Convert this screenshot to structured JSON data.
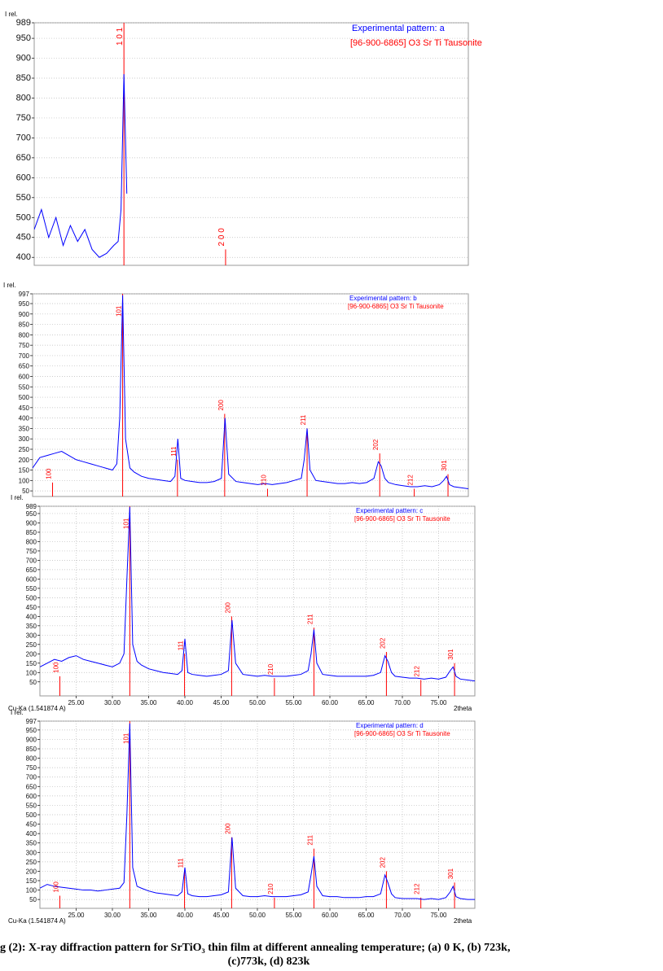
{
  "chart_data": [
    {
      "type": "line",
      "y_label": "I rel.",
      "grid": true,
      "legend": "upper right",
      "xlim": [
        20,
        80
      ],
      "ylim": [
        380,
        989
      ],
      "yticks": [
        400,
        450,
        500,
        550,
        600,
        650,
        700,
        750,
        800,
        850,
        900,
        950,
        989
      ],
      "x": [
        20,
        21,
        22,
        23,
        24,
        25,
        26,
        27,
        28,
        29,
        30,
        31,
        31.6,
        32,
        32.4,
        32.8
      ],
      "series": [
        {
          "name": "Experimental pattern: a",
          "color": "#0000ff",
          "values": [
            470,
            520,
            450,
            500,
            430,
            480,
            440,
            470,
            420,
            400,
            410,
            430,
            440,
            520,
            860,
            560
          ]
        }
      ],
      "reference": {
        "name": "[96-900-6865] O3 Sr Ti Tausonite",
        "color": "#ff0000",
        "x": [
          32.4,
          46.45
        ],
        "values": [
          989,
          420
        ],
        "labels": [
          "1 0 1",
          "2 0 0"
        ]
      }
    },
    {
      "type": "line",
      "y_label": "I rel.",
      "grid": true,
      "legend": "upper right",
      "xlim": [
        20,
        80
      ],
      "ylim": [
        23,
        997
      ],
      "yticks": [
        50,
        100,
        150,
        200,
        250,
        300,
        350,
        400,
        450,
        500,
        550,
        600,
        650,
        700,
        750,
        800,
        850,
        900,
        950,
        997
      ],
      "x": [
        20,
        21,
        22,
        23,
        24,
        25,
        26,
        27,
        28,
        29,
        30,
        31,
        31.6,
        32,
        32.4,
        32.8,
        33.4,
        34,
        35,
        36,
        37,
        38,
        39,
        39.6,
        40,
        40.4,
        41,
        42,
        43,
        44,
        45,
        46,
        46.5,
        47,
        48,
        49,
        50,
        51,
        52,
        53,
        54,
        55,
        56,
        57,
        57.4,
        57.8,
        58.2,
        59,
        60,
        61,
        62,
        63,
        64,
        65,
        66,
        67,
        67.6,
        68,
        68.5,
        69,
        70,
        71,
        72,
        73,
        74,
        75,
        76,
        76.6,
        77,
        77.4,
        78,
        79,
        80
      ],
      "series": [
        {
          "name": "Experimental pattern: b",
          "color": "#0000ff",
          "values": [
            160,
            210,
            220,
            230,
            240,
            220,
            200,
            190,
            180,
            170,
            160,
            150,
            180,
            400,
            990,
            300,
            160,
            140,
            120,
            110,
            105,
            100,
            95,
            120,
            300,
            110,
            100,
            95,
            90,
            90,
            95,
            110,
            400,
            130,
            95,
            90,
            85,
            80,
            85,
            80,
            85,
            90,
            100,
            110,
            200,
            350,
            150,
            100,
            95,
            90,
            85,
            85,
            90,
            85,
            90,
            110,
            190,
            170,
            110,
            90,
            80,
            75,
            70,
            70,
            75,
            70,
            80,
            100,
            120,
            80,
            70,
            65,
            60
          ]
        }
      ],
      "reference": {
        "name": "[96-900-6865] O3 Sr Ti Tausonite",
        "color": "#ff0000",
        "x": [
          22.75,
          32.4,
          39.95,
          46.45,
          52.35,
          57.8,
          67.8,
          72.55,
          77.2
        ],
        "values": [
          90,
          997,
          200,
          420,
          60,
          350,
          230,
          60,
          130
        ],
        "labels": [
          "100",
          "101",
          "111",
          "200",
          "210",
          "211",
          "202",
          "212",
          "301"
        ]
      }
    },
    {
      "type": "line",
      "y_label": "I rel.",
      "grid": true,
      "legend": "upper right",
      "x_label": "2theta",
      "radiation": "Cu-Ka (1.541874 A)",
      "xlim": [
        20,
        80
      ],
      "ylim": [
        -25,
        989
      ],
      "xticks": [
        {
          "value": 25,
          "label": "25.00"
        },
        {
          "value": 30,
          "label": "30.00"
        },
        {
          "value": 35,
          "label": "35.00"
        },
        {
          "value": 40,
          "label": "40.00"
        },
        {
          "value": 45,
          "label": "45.00"
        },
        {
          "value": 50,
          "label": "50.00"
        },
        {
          "value": 55,
          "label": "55.00"
        },
        {
          "value": 60,
          "label": "60.00"
        },
        {
          "value": 65,
          "label": "65.00"
        },
        {
          "value": 70,
          "label": "70.00"
        },
        {
          "value": 75,
          "label": "75.00"
        }
      ],
      "yticks": [
        50,
        100,
        150,
        200,
        250,
        300,
        350,
        400,
        450,
        500,
        550,
        600,
        650,
        700,
        750,
        800,
        850,
        900,
        950,
        989
      ],
      "x": [
        20,
        21,
        22,
        23,
        24,
        25,
        26,
        27,
        28,
        29,
        30,
        31,
        31.6,
        32,
        32.4,
        32.8,
        33.4,
        34,
        35,
        36,
        37,
        38,
        39,
        39.6,
        40,
        40.4,
        41,
        42,
        43,
        44,
        45,
        46,
        46.5,
        47,
        48,
        49,
        50,
        51,
        52,
        53,
        54,
        55,
        56,
        57,
        57.4,
        57.8,
        58.2,
        59,
        60,
        61,
        62,
        63,
        64,
        65,
        66,
        67,
        67.6,
        68,
        68.5,
        69,
        70,
        71,
        72,
        73,
        74,
        75,
        76,
        76.6,
        77,
        77.4,
        78,
        79,
        80
      ],
      "series": [
        {
          "name": "Experimental pattern: c",
          "color": "#0000ff",
          "values": [
            130,
            150,
            170,
            160,
            180,
            190,
            170,
            160,
            150,
            140,
            130,
            150,
            200,
            600,
            985,
            250,
            160,
            140,
            120,
            110,
            100,
            95,
            90,
            110,
            280,
            100,
            90,
            85,
            80,
            85,
            90,
            110,
            380,
            150,
            90,
            85,
            80,
            85,
            80,
            80,
            80,
            85,
            90,
            110,
            200,
            330,
            150,
            90,
            85,
            80,
            80,
            80,
            80,
            80,
            85,
            100,
            190,
            160,
            100,
            80,
            75,
            70,
            70,
            65,
            70,
            65,
            75,
            110,
            130,
            80,
            65,
            60,
            55
          ]
        }
      ],
      "reference": {
        "name": "[96-900-6865] O3 Sr Ti Tausonite",
        "color": "#ff0000",
        "x": [
          22.75,
          32.4,
          39.95,
          46.45,
          52.35,
          57.8,
          67.8,
          72.55,
          77.2
        ],
        "values": [
          80,
          989,
          200,
          400,
          70,
          340,
          210,
          60,
          150
        ],
        "labels": [
          "100",
          "101",
          "111",
          "200",
          "210",
          "211",
          "202",
          "212",
          "301"
        ]
      }
    },
    {
      "type": "line",
      "y_label": "I rel.",
      "grid": true,
      "legend": "upper right",
      "x_label": "2theta",
      "radiation": "Cu-Ka (1.541874 A)",
      "xlim": [
        20,
        80
      ],
      "ylim": [
        3,
        997
      ],
      "xticks": [
        {
          "value": 25,
          "label": "25.00"
        },
        {
          "value": 30,
          "label": "30.00"
        },
        {
          "value": 35,
          "label": "35.00"
        },
        {
          "value": 40,
          "label": "40.00"
        },
        {
          "value": 45,
          "label": "45.00"
        },
        {
          "value": 50,
          "label": "50.00"
        },
        {
          "value": 55,
          "label": "55.00"
        },
        {
          "value": 60,
          "label": "60.00"
        },
        {
          "value": 65,
          "label": "65.00"
        },
        {
          "value": 70,
          "label": "70.00"
        },
        {
          "value": 75,
          "label": "75.00"
        }
      ],
      "yticks": [
        50,
        100,
        150,
        200,
        250,
        300,
        350,
        400,
        450,
        500,
        550,
        600,
        650,
        700,
        750,
        800,
        850,
        900,
        950,
        997
      ],
      "x": [
        20,
        21,
        22,
        23,
        24,
        25,
        26,
        27,
        28,
        29,
        30,
        31,
        31.6,
        32,
        32.4,
        32.8,
        33.4,
        34,
        35,
        36,
        37,
        38,
        39,
        39.6,
        40,
        40.4,
        41,
        42,
        43,
        44,
        45,
        46,
        46.5,
        47,
        48,
        49,
        50,
        51,
        52,
        53,
        54,
        55,
        56,
        57,
        57.4,
        57.8,
        58.2,
        59,
        60,
        61,
        62,
        63,
        64,
        65,
        66,
        67,
        67.6,
        68,
        68.5,
        69,
        70,
        71,
        72,
        73,
        74,
        75,
        76,
        76.6,
        77,
        77.4,
        78,
        79,
        80
      ],
      "series": [
        {
          "name": "Experimental pattern: d",
          "color": "#0000ff",
          "values": [
            110,
            130,
            120,
            115,
            110,
            105,
            100,
            100,
            95,
            100,
            105,
            110,
            140,
            500,
            985,
            220,
            120,
            110,
            95,
            85,
            80,
            75,
            70,
            90,
            220,
            80,
            70,
            65,
            65,
            70,
            75,
            90,
            380,
            110,
            70,
            65,
            65,
            70,
            65,
            65,
            65,
            70,
            75,
            90,
            180,
            280,
            120,
            70,
            65,
            65,
            60,
            60,
            60,
            65,
            65,
            80,
            180,
            140,
            80,
            60,
            55,
            55,
            55,
            50,
            55,
            50,
            60,
            90,
            120,
            65,
            55,
            50,
            50
          ]
        }
      ],
      "reference": {
        "name": "[96-900-6865] O3 Sr Ti Tausonite",
        "color": "#ff0000",
        "x": [
          22.75,
          32.4,
          39.95,
          46.45,
          52.35,
          57.8,
          67.8,
          72.55,
          77.2
        ],
        "values": [
          70,
          997,
          200,
          380,
          60,
          320,
          200,
          60,
          140
        ],
        "labels": [
          "100",
          "101",
          "111",
          "200",
          "210",
          "211",
          "202",
          "212",
          "301"
        ]
      }
    }
  ],
  "caption": [
    "g (2): X-ray diffraction pattern for SrTiO₃ thin film at different annealing temperature; (a) 0 K, (b) 723k,",
    "(c)773k, (d) 823k"
  ]
}
